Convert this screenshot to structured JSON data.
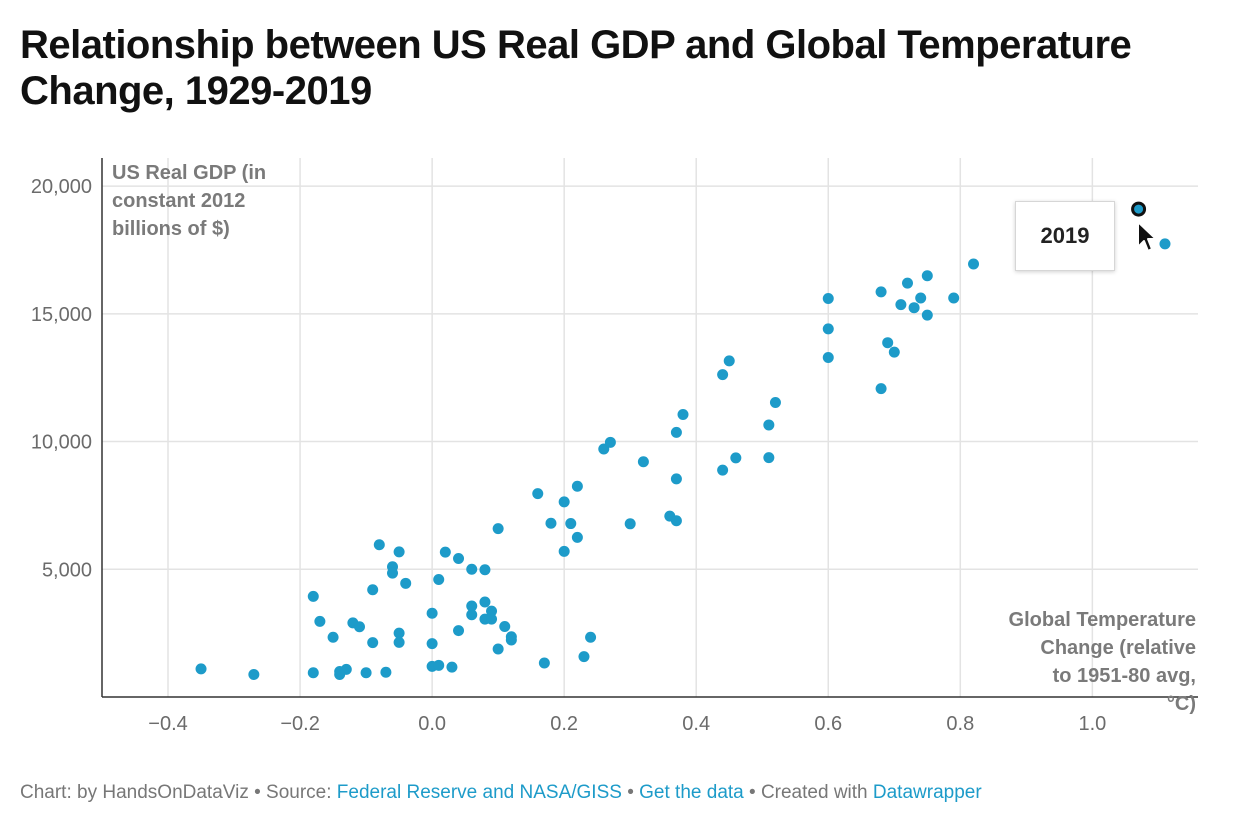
{
  "title": "Relationship between US Real GDP and Global Temperature Change, 1929-2019",
  "tooltip": {
    "label": "2019"
  },
  "footer": {
    "chart_by": "Chart: by HandsOnDataViz",
    "sep1": " • Source: ",
    "source_link": "Federal Reserve and NASA/GISS",
    "sep2": " • ",
    "data_link": "Get the data",
    "sep3": " • Created with ",
    "tool_link": "Datawrapper"
  },
  "colors": {
    "dot": "#1d9bc9",
    "grid": "#e3e3e3",
    "axis_text": "#6b6b6b",
    "link": "#1d9bc9"
  },
  "icons": {
    "cursor": "mouse-pointer-icon"
  },
  "chart_data": {
    "type": "scatter",
    "title": "Relationship between US Real GDP and Global Temperature Change, 1929-2019",
    "xlabel": "Global Temperature Change (relative to 1951-80 avg, °C)",
    "ylabel": "US Real GDP (in constant 2012 billions of $)",
    "xlim": [
      -0.5,
      1.16
    ],
    "ylim": [
      0,
      21100
    ],
    "x_ticks": [
      -0.4,
      -0.2,
      0.0,
      0.2,
      0.4,
      0.6,
      0.8,
      1.0
    ],
    "x_tick_labels": [
      "−0.4",
      "−0.2",
      "0.0",
      "0.2",
      "0.4",
      "0.6",
      "0.8",
      "1.0"
    ],
    "y_ticks": [
      5000,
      10000,
      15000,
      20000
    ],
    "y_tick_labels": [
      "5,000",
      "10,000",
      "15,000",
      "20,000"
    ],
    "grid": true,
    "highlight": {
      "label": "2019",
      "x": 1.07,
      "y": 19100
    },
    "points": [
      [
        -0.35,
        1100
      ],
      [
        -0.27,
        880
      ],
      [
        -0.18,
        950
      ],
      [
        -0.14,
        1000
      ],
      [
        -0.13,
        1080
      ],
      [
        -0.14,
        880
      ],
      [
        -0.1,
        950
      ],
      [
        -0.07,
        970
      ],
      [
        -0.18,
        3940
      ],
      [
        -0.17,
        2960
      ],
      [
        -0.15,
        2340
      ],
      [
        -0.12,
        2900
      ],
      [
        -0.11,
        2750
      ],
      [
        -0.09,
        2130
      ],
      [
        -0.05,
        2500
      ],
      [
        -0.09,
        4200
      ],
      [
        -0.08,
        5960
      ],
      [
        -0.06,
        5100
      ],
      [
        -0.06,
        4850
      ],
      [
        -0.05,
        5680
      ],
      [
        -0.04,
        4450
      ],
      [
        -0.05,
        2140
      ],
      [
        0.0,
        3280
      ],
      [
        0.0,
        2090
      ],
      [
        0.0,
        1200
      ],
      [
        0.01,
        1240
      ],
      [
        0.03,
        1170
      ],
      [
        0.01,
        4600
      ],
      [
        0.02,
        5670
      ],
      [
        0.04,
        5420
      ],
      [
        0.06,
        5000
      ],
      [
        0.08,
        4980
      ],
      [
        0.04,
        2600
      ],
      [
        0.06,
        3560
      ],
      [
        0.06,
        3220
      ],
      [
        0.08,
        3720
      ],
      [
        0.08,
        3050
      ],
      [
        0.09,
        3360
      ],
      [
        0.09,
        3050
      ],
      [
        0.1,
        1880
      ],
      [
        0.11,
        2760
      ],
      [
        0.12,
        2360
      ],
      [
        0.12,
        2230
      ],
      [
        0.1,
        6590
      ],
      [
        0.16,
        7960
      ],
      [
        0.18,
        6800
      ],
      [
        0.2,
        7640
      ],
      [
        0.2,
        5700
      ],
      [
        0.21,
        6790
      ],
      [
        0.22,
        6250
      ],
      [
        0.22,
        8250
      ],
      [
        0.17,
        1330
      ],
      [
        0.23,
        1580
      ],
      [
        0.24,
        2340
      ],
      [
        0.26,
        9710
      ],
      [
        0.27,
        9970
      ],
      [
        0.3,
        6780
      ],
      [
        0.32,
        9210
      ],
      [
        0.36,
        7080
      ],
      [
        0.37,
        6900
      ],
      [
        0.37,
        8540
      ],
      [
        0.37,
        10360
      ],
      [
        0.38,
        11060
      ],
      [
        0.44,
        8880
      ],
      [
        0.46,
        9360
      ],
      [
        0.44,
        12620
      ],
      [
        0.45,
        13160
      ],
      [
        0.51,
        9370
      ],
      [
        0.51,
        10650
      ],
      [
        0.52,
        11530
      ],
      [
        0.6,
        13290
      ],
      [
        0.6,
        14410
      ],
      [
        0.6,
        15600
      ],
      [
        0.68,
        12070
      ],
      [
        0.68,
        15860
      ],
      [
        0.69,
        13870
      ],
      [
        0.7,
        13500
      ],
      [
        0.71,
        15360
      ],
      [
        0.72,
        16200
      ],
      [
        0.73,
        15240
      ],
      [
        0.74,
        15620
      ],
      [
        0.75,
        14950
      ],
      [
        0.75,
        16490
      ],
      [
        0.79,
        15620
      ],
      [
        0.82,
        16950
      ],
      [
        1.11,
        17740
      ]
    ]
  }
}
